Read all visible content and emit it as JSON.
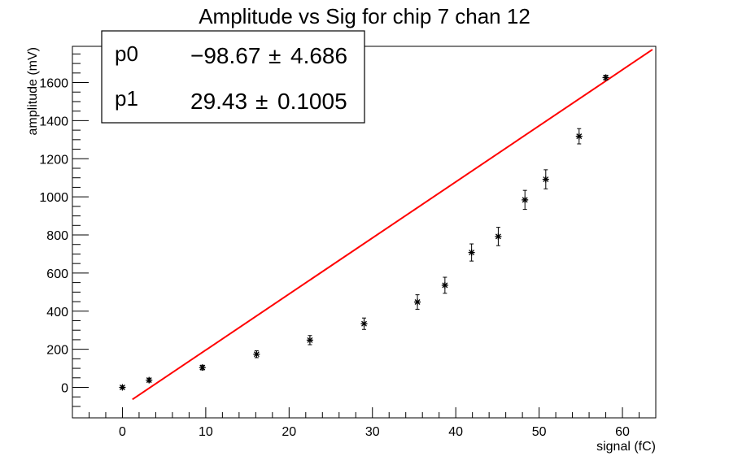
{
  "chart_data": {
    "type": "scatter",
    "title": "Amplitude vs Sig for chip 7 chan 12",
    "xlabel": "signal (fC)",
    "ylabel": "amplitude (mV)",
    "xlim": [
      -6,
      64
    ],
    "ylim": [
      -160,
      1790
    ],
    "x_ticks": [
      0,
      10,
      20,
      30,
      40,
      50,
      60
    ],
    "y_ticks": [
      0,
      200,
      400,
      600,
      800,
      1000,
      1200,
      1400,
      1600
    ],
    "grid": false,
    "legend": "none",
    "points": [
      {
        "x": 0.0,
        "y": 0,
        "err": 8
      },
      {
        "x": 3.2,
        "y": 38,
        "err": 10
      },
      {
        "x": 9.6,
        "y": 104,
        "err": 12
      },
      {
        "x": 16.1,
        "y": 174,
        "err": 18
      },
      {
        "x": 22.5,
        "y": 248,
        "err": 24
      },
      {
        "x": 29.0,
        "y": 334,
        "err": 30
      },
      {
        "x": 35.4,
        "y": 448,
        "err": 38
      },
      {
        "x": 38.7,
        "y": 536,
        "err": 42
      },
      {
        "x": 41.9,
        "y": 708,
        "err": 45
      },
      {
        "x": 45.1,
        "y": 792,
        "err": 48
      },
      {
        "x": 48.3,
        "y": 984,
        "err": 50
      },
      {
        "x": 50.8,
        "y": 1092,
        "err": 50
      },
      {
        "x": 54.8,
        "y": 1318,
        "err": 40
      },
      {
        "x": 58.0,
        "y": 1626,
        "err": 12
      }
    ],
    "fit": {
      "function": "p0 + p1 * x",
      "x_range": [
        1.2,
        63.6
      ],
      "color": "#ff0000",
      "params": [
        {
          "name": "p0",
          "value": "−98.67",
          "error": "4.686"
        },
        {
          "name": "p1",
          "value": "29.43",
          "error": "0.1005"
        }
      ],
      "p0_num": -98.67,
      "p1_num": 29.43
    },
    "stats_box": {
      "pm_symbol": "±"
    }
  }
}
